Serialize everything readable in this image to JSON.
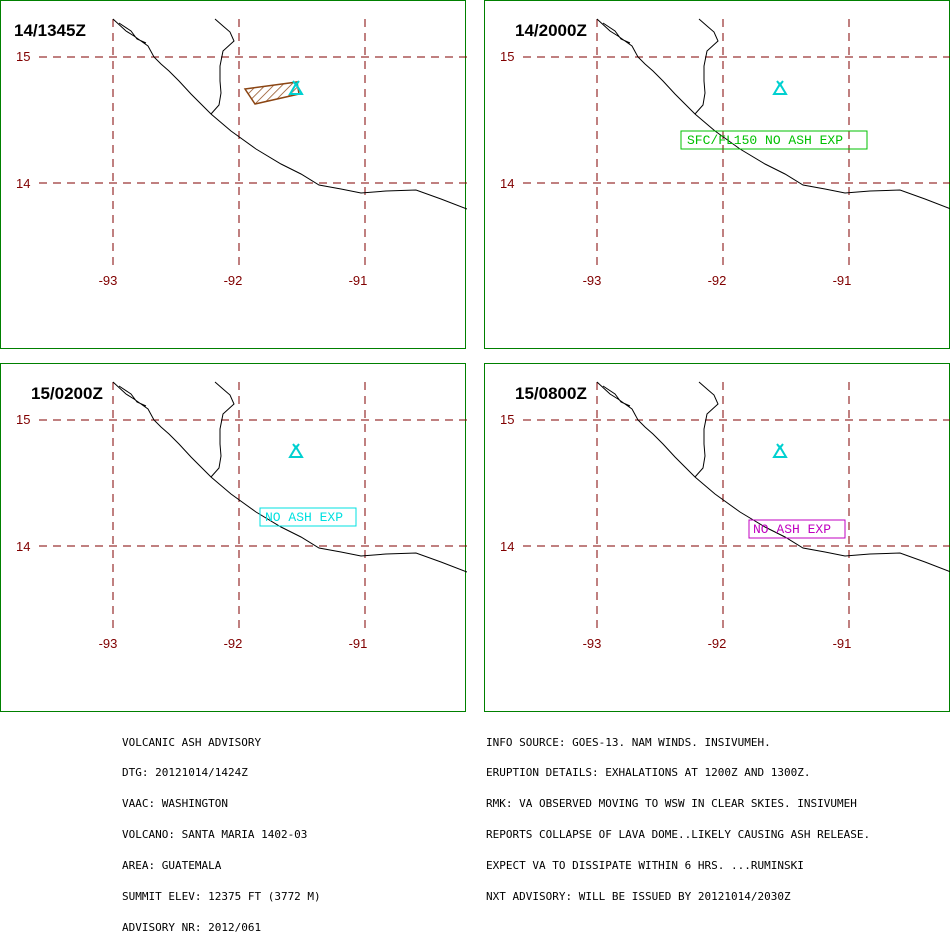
{
  "panels": [
    {
      "title": "14/1345Z",
      "label": "",
      "ash_polygon": true
    },
    {
      "title": "14/2000Z",
      "label": "SFC/FL150 NO ASH EXP",
      "label_color": "#00c000",
      "ash_polygon": false
    },
    {
      "title": "15/0200Z",
      "label": "NO ASH EXP",
      "label_color": "#00e0e0",
      "ash_polygon": false
    },
    {
      "title": "15/0800Z",
      "label": "NO ASH EXP",
      "label_color": "#c000c0",
      "ash_polygon": false
    }
  ],
  "latitudes": [
    "15",
    "14"
  ],
  "longitudes": [
    "-93",
    "-92",
    "-91"
  ],
  "colors": {
    "grid": "#800000",
    "border": "#008000",
    "volcano": "#00d0d0",
    "ash": "#8b4513",
    "coast": "#000000"
  },
  "volcano_icon": "volcano-triangle-icon",
  "advisory_left": [
    "VOLCANIC ASH ADVISORY",
    "DTG: 20121014/1424Z",
    "VAAC: WASHINGTON",
    "VOLCANO: SANTA MARIA 1402-03",
    "AREA: GUATEMALA",
    "SUMMIT ELEV: 12375 FT (3772 M)",
    "ADVISORY NR: 2012/061"
  ],
  "advisory_right": [
    "INFO SOURCE: GOES-13. NAM WINDS. INSIVUMEH.",
    "ERUPTION DETAILS: EXHALATIONS AT 1200Z AND 1300Z.",
    "RMK: VA OBSERVED MOVING TO WSW IN CLEAR SKIES. INSIVUMEH",
    "REPORTS COLLAPSE OF LAVA DOME..LIKELY CAUSING ASH RELEASE.",
    "EXPECT VA TO DISSIPATE WITHIN 6 HRS. ...RUMINSKI",
    "NXT ADVISORY: WILL BE ISSUED BY 20121014/2030Z"
  ]
}
